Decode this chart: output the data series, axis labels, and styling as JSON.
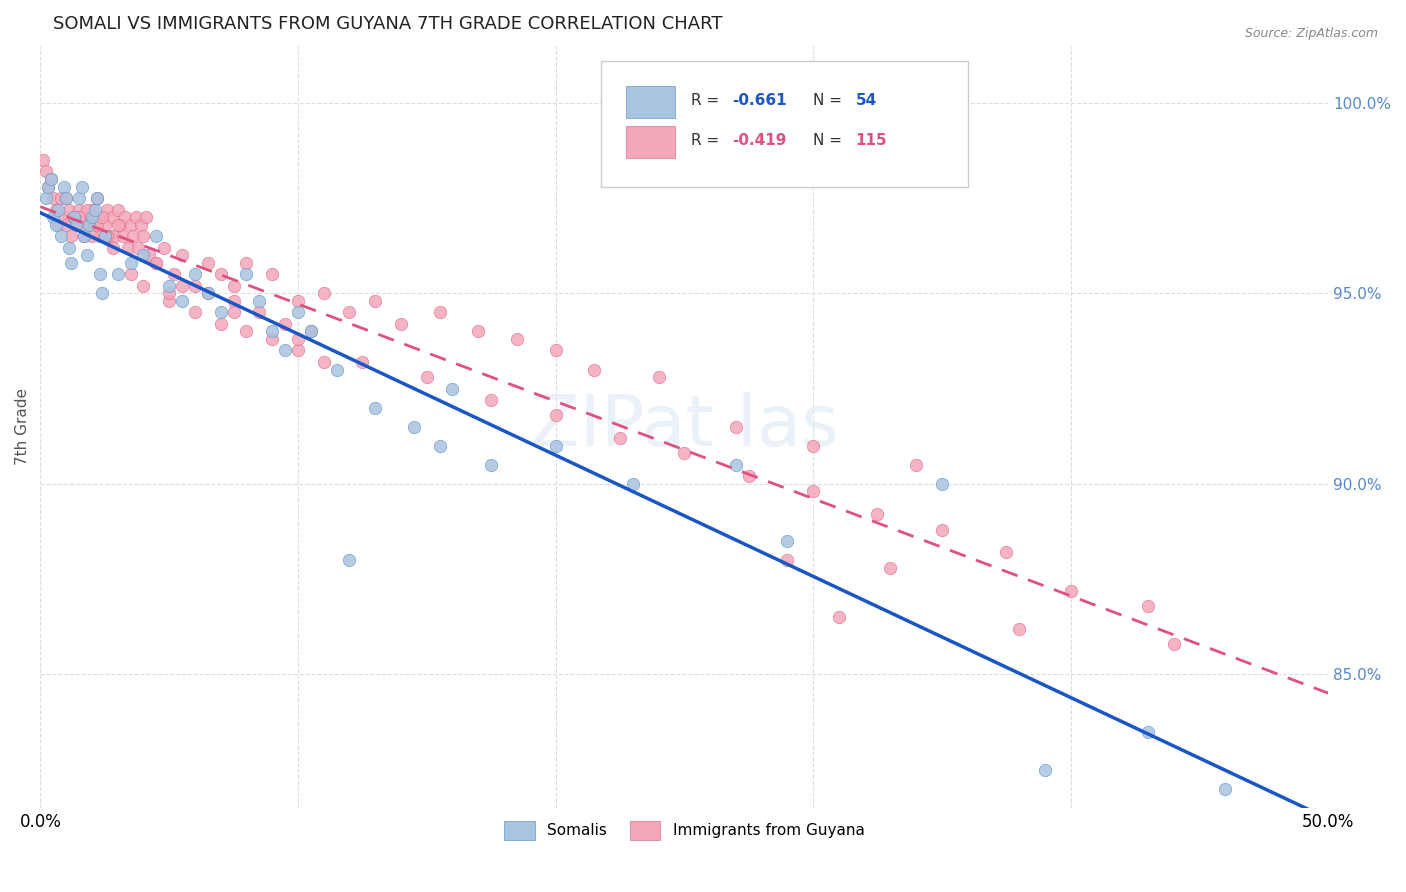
{
  "title": "SOMALI VS IMMIGRANTS FROM GUYANA 7TH GRADE CORRELATION CHART",
  "source": "Source: ZipAtlas.com",
  "ylabel": "7th Grade",
  "x_range": [
    0.0,
    0.5
  ],
  "y_range": [
    81.5,
    101.5
  ],
  "somali_color": "#a8c4e0",
  "guyana_color": "#f4a7b9",
  "somali_edge": "#6699cc",
  "guyana_edge": "#e07090",
  "line_somali": "#1a56c4",
  "line_guyana": "#e05080",
  "background": "#ffffff",
  "grid_color": "#dddddd",
  "somali_scatter_x": [
    0.002,
    0.003,
    0.004,
    0.005,
    0.006,
    0.007,
    0.008,
    0.009,
    0.01,
    0.011,
    0.012,
    0.013,
    0.014,
    0.015,
    0.016,
    0.017,
    0.018,
    0.019,
    0.02,
    0.021,
    0.022,
    0.023,
    0.024,
    0.025,
    0.03,
    0.035,
    0.04,
    0.05,
    0.055,
    0.06,
    0.065,
    0.07,
    0.08,
    0.085,
    0.09,
    0.095,
    0.1,
    0.115,
    0.13,
    0.145,
    0.155,
    0.16,
    0.175,
    0.2,
    0.23,
    0.27,
    0.29,
    0.35,
    0.39,
    0.43,
    0.045,
    0.105,
    0.12,
    0.46
  ],
  "somali_scatter_y": [
    97.5,
    97.8,
    98.0,
    97.0,
    96.8,
    97.2,
    96.5,
    97.8,
    97.5,
    96.2,
    95.8,
    97.0,
    96.8,
    97.5,
    97.8,
    96.5,
    96.0,
    96.8,
    97.0,
    97.2,
    97.5,
    95.5,
    95.0,
    96.5,
    95.5,
    95.8,
    96.0,
    95.2,
    94.8,
    95.5,
    95.0,
    94.5,
    95.5,
    94.8,
    94.0,
    93.5,
    94.5,
    93.0,
    92.0,
    91.5,
    91.0,
    92.5,
    90.5,
    91.0,
    90.0,
    90.5,
    88.5,
    90.0,
    82.5,
    83.5,
    96.5,
    94.0,
    88.0,
    82.0
  ],
  "guyana_scatter_x": [
    0.001,
    0.002,
    0.003,
    0.004,
    0.005,
    0.006,
    0.007,
    0.008,
    0.009,
    0.01,
    0.011,
    0.012,
    0.013,
    0.014,
    0.015,
    0.016,
    0.017,
    0.018,
    0.019,
    0.02,
    0.021,
    0.022,
    0.023,
    0.024,
    0.025,
    0.026,
    0.027,
    0.028,
    0.029,
    0.03,
    0.031,
    0.032,
    0.033,
    0.034,
    0.035,
    0.036,
    0.037,
    0.038,
    0.039,
    0.04,
    0.041,
    0.042,
    0.045,
    0.048,
    0.052,
    0.055,
    0.06,
    0.065,
    0.07,
    0.075,
    0.08,
    0.09,
    0.1,
    0.11,
    0.12,
    0.13,
    0.14,
    0.155,
    0.17,
    0.185,
    0.2,
    0.215,
    0.24,
    0.27,
    0.3,
    0.34,
    0.01,
    0.013,
    0.016,
    0.018,
    0.02,
    0.022,
    0.024,
    0.026,
    0.028,
    0.03,
    0.035,
    0.04,
    0.045,
    0.05,
    0.055,
    0.06,
    0.065,
    0.07,
    0.075,
    0.08,
    0.085,
    0.09,
    0.095,
    0.1,
    0.105,
    0.11,
    0.015,
    0.025,
    0.05,
    0.075,
    0.1,
    0.125,
    0.15,
    0.175,
    0.2,
    0.225,
    0.25,
    0.275,
    0.3,
    0.325,
    0.35,
    0.375,
    0.33,
    0.4,
    0.43,
    0.38,
    0.44,
    0.29,
    0.31
  ],
  "guyana_scatter_y": [
    98.5,
    98.2,
    97.8,
    98.0,
    97.5,
    97.2,
    96.8,
    97.5,
    97.0,
    96.8,
    97.2,
    96.5,
    97.0,
    96.8,
    97.2,
    97.0,
    96.5,
    97.0,
    96.8,
    97.2,
    96.8,
    97.5,
    96.5,
    97.0,
    96.8,
    97.2,
    96.5,
    97.0,
    96.5,
    97.2,
    96.8,
    96.5,
    97.0,
    96.2,
    96.8,
    96.5,
    97.0,
    96.2,
    96.8,
    96.5,
    97.0,
    96.0,
    95.8,
    96.2,
    95.5,
    96.0,
    95.2,
    95.8,
    95.5,
    95.2,
    95.8,
    95.5,
    94.8,
    95.0,
    94.5,
    94.8,
    94.2,
    94.5,
    94.0,
    93.8,
    93.5,
    93.0,
    92.8,
    91.5,
    91.0,
    90.5,
    97.5,
    97.0,
    96.8,
    97.2,
    96.5,
    96.8,
    97.0,
    96.5,
    96.2,
    96.8,
    95.5,
    95.2,
    95.8,
    94.8,
    95.2,
    94.5,
    95.0,
    94.2,
    94.8,
    94.0,
    94.5,
    93.8,
    94.2,
    93.5,
    94.0,
    93.2,
    97.0,
    96.5,
    95.0,
    94.5,
    93.8,
    93.2,
    92.8,
    92.2,
    91.8,
    91.2,
    90.8,
    90.2,
    89.8,
    89.2,
    88.8,
    88.2,
    87.8,
    87.2,
    86.8,
    86.2,
    85.8,
    88.0,
    86.5
  ]
}
